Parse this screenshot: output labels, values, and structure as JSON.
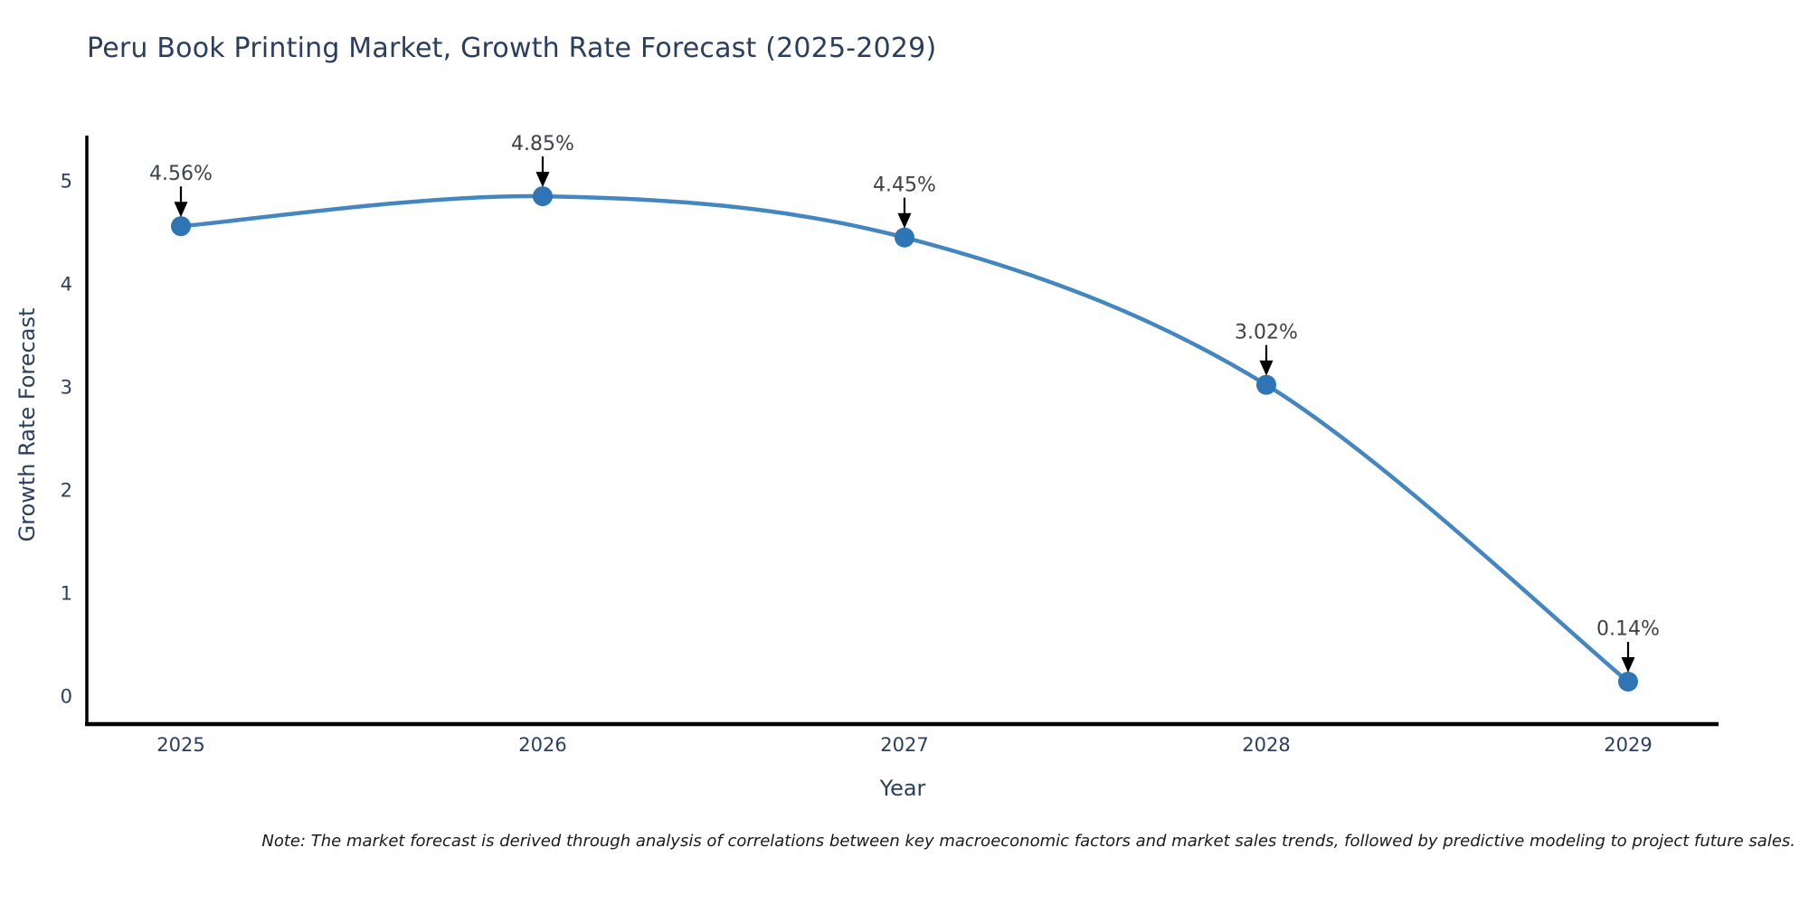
{
  "chart_data": {
    "type": "line",
    "title": "Peru Book Printing Market, Growth Rate Forecast (2025-2029)",
    "xlabel": "Year",
    "ylabel": "Growth Rate Forecast",
    "categories": [
      "2025",
      "2026",
      "2027",
      "2028",
      "2029"
    ],
    "values": [
      4.56,
      4.85,
      4.45,
      3.02,
      0.14
    ],
    "point_labels": [
      "4.56%",
      "4.85%",
      "4.45%",
      "3.02%",
      "0.14%"
    ],
    "yticks": [
      0,
      1,
      2,
      3,
      4,
      5
    ],
    "ylim": [
      0,
      5
    ],
    "grid": false,
    "legend": "none",
    "line_color": "#4486c0",
    "marker_color": "#2f74b4",
    "axis_color": "#000000",
    "arrow_color": "#000000",
    "title_color": "#2a3f5f",
    "tick_color": "#2a3f5f",
    "axis_label_color": "#2a3f5f",
    "annotation_color": "#3d4247",
    "note_color": "#1a1a1a"
  },
  "note": "Note: The market forecast is derived through analysis of correlations between key macroeconomic factors and market sales trends, followed by predictive modeling to project future sales."
}
